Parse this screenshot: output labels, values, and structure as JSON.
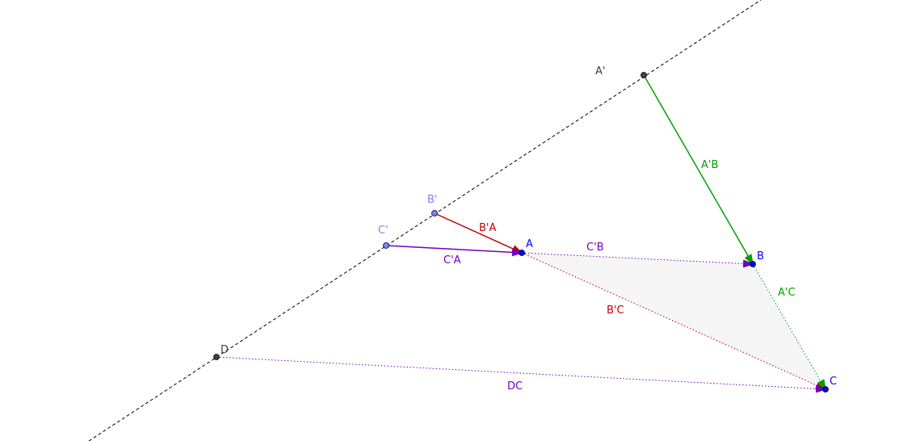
{
  "points": {
    "A_prime": {
      "label": "A'",
      "color": "#404040"
    },
    "B_prime": {
      "label": "B'",
      "color": "#7f7fff"
    },
    "C_prime": {
      "label": "C'",
      "color": "#7f7fff"
    },
    "D": {
      "label": "D",
      "color": "#404040"
    },
    "A": {
      "label": "A",
      "color": "#0000ff"
    },
    "B": {
      "label": "B",
      "color": "#0000ff"
    },
    "C": {
      "label": "C",
      "color": "#0000ff"
    }
  },
  "vectors": {
    "A_prime_B": {
      "label": "A'B",
      "color": "#00a000",
      "style": "solid"
    },
    "B_prime_A": {
      "label": "B'A",
      "color": "#c00000",
      "style": "solid"
    },
    "C_prime_A": {
      "label": "C'A",
      "color": "#7000c0",
      "style": "solid"
    },
    "C_prime_B": {
      "label": "C'B",
      "color": "#7000c0",
      "style": "dotted"
    },
    "A_prime_C": {
      "label": "A'C",
      "color": "#00a000",
      "style": "dotted"
    },
    "B_prime_C": {
      "label": "B'C",
      "color": "#c00000",
      "style": "dotted"
    },
    "DC": {
      "label": "DC",
      "color": "#7000c0",
      "style": "dotted"
    }
  },
  "line": {
    "color": "#000000",
    "style": "dashed"
  },
  "triangle_fill": "#f5f5f5"
}
